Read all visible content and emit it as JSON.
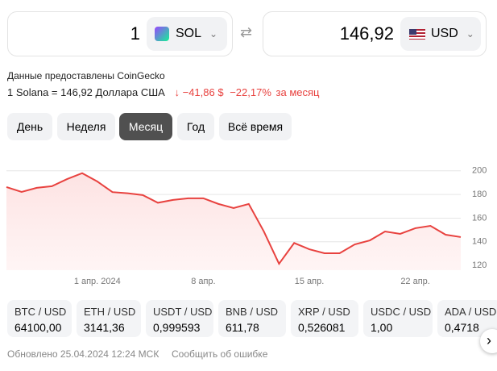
{
  "converter": {
    "from_amount": "1",
    "from_currency": "SOL",
    "to_amount": "146,92",
    "to_currency": "USD"
  },
  "source": "Данные предоставлены CoinGecko",
  "rate": {
    "text": "1 Solana = 146,92 Доллара США",
    "change_abs": "−41,86 $",
    "change_pct": "−22,17%",
    "period": "за месяц"
  },
  "periods": [
    "День",
    "Неделя",
    "Месяц",
    "Год",
    "Всё время"
  ],
  "chart": {
    "type": "line",
    "color": "#e8423f",
    "categories": [
      null,
      null,
      null,
      null,
      null,
      null,
      "1 апр. 2024",
      null,
      null,
      null,
      null,
      null,
      null,
      "8 апр.",
      null,
      null,
      null,
      null,
      null,
      null,
      "15 апр.",
      null,
      null,
      null,
      null,
      null,
      null,
      "22 апр.",
      null,
      null,
      null
    ],
    "values": [
      186.3,
      182.2,
      185.6,
      187,
      193,
      198,
      191,
      182,
      181,
      179.5,
      173,
      175.4,
      176.8,
      176.8,
      172,
      168.5,
      172,
      148.7,
      121.4,
      139,
      133.7,
      130.3,
      130.3,
      137.8,
      141.2,
      148.7,
      146.7,
      151.5,
      153.5,
      146,
      144
    ],
    "ylim": [
      116,
      206
    ],
    "yticks": [
      120,
      140,
      160,
      180,
      200
    ],
    "grid": true
  },
  "tickers": [
    {
      "pair": "BTC / USD",
      "value": "64100,00"
    },
    {
      "pair": "ETH / USD",
      "value": "3141,36"
    },
    {
      "pair": "USDT / USD",
      "value": "0,999593"
    },
    {
      "pair": "BNB / USD",
      "value": "611,78"
    },
    {
      "pair": "XRP / USD",
      "value": "0,526081"
    },
    {
      "pair": "USDC / USD",
      "value": "1,00"
    },
    {
      "pair": "ADA / USD",
      "value": "0,4718"
    }
  ],
  "footer": {
    "updated": "Обновлено 25.04.2024 12:24 МСК",
    "report": "Сообщить об ошибке"
  }
}
